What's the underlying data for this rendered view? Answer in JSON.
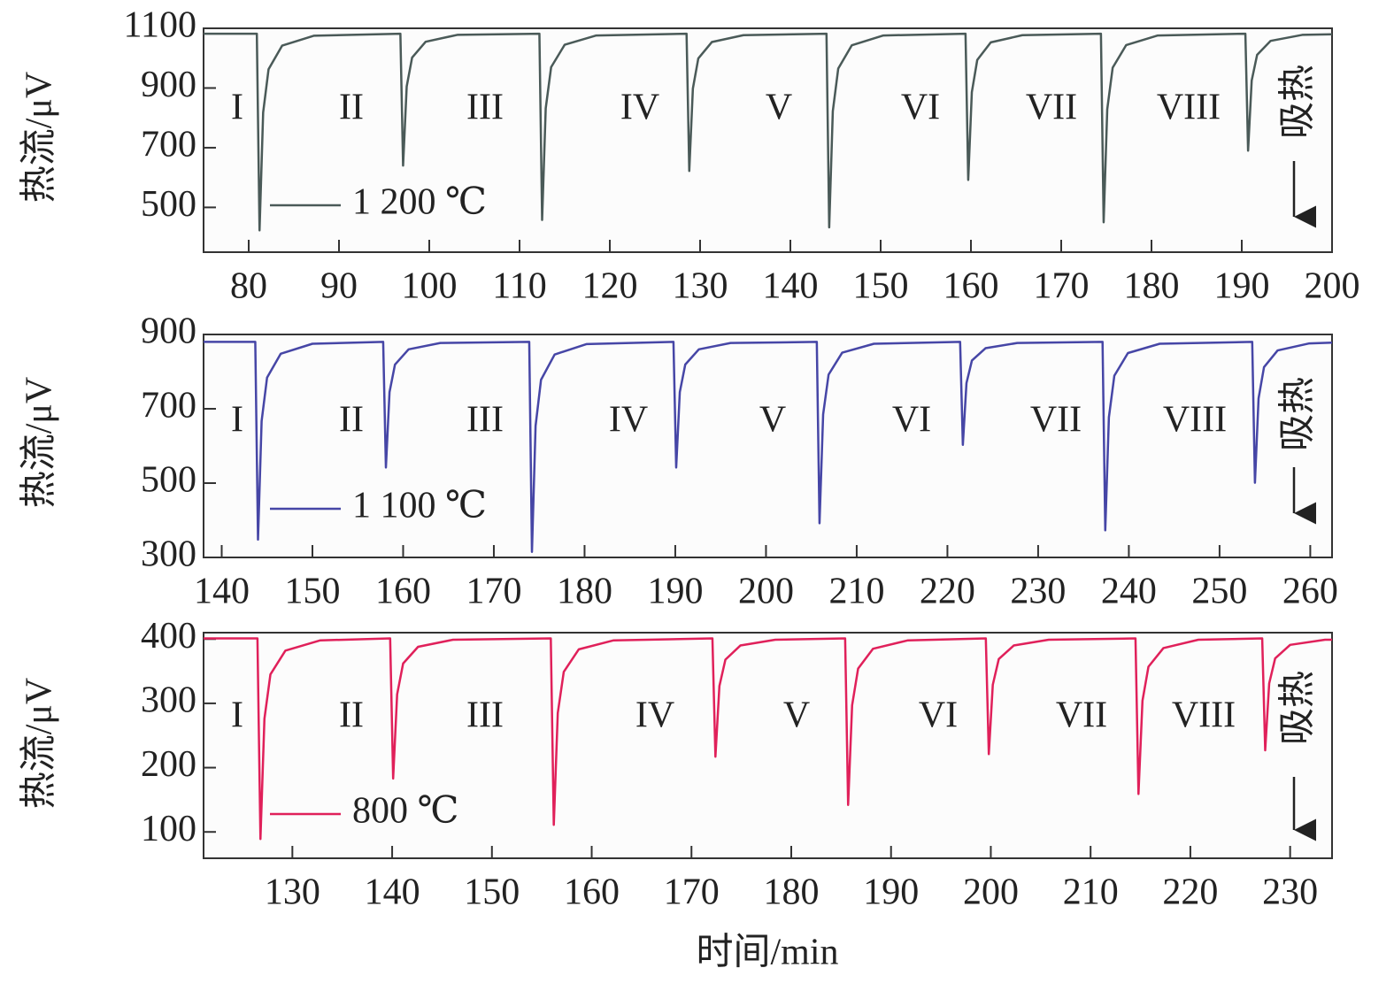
{
  "chart_data": [
    {
      "type": "line",
      "ylabel": "热流/μV",
      "xlim": [
        75,
        200
      ],
      "ylim": [
        350,
        1100
      ],
      "xticks": [
        80,
        90,
        100,
        110,
        120,
        130,
        140,
        150,
        160,
        170,
        180,
        190,
        200
      ],
      "yticks": [
        500,
        700,
        900,
        1100
      ],
      "annotations": [
        "I",
        "II",
        "III",
        "IV",
        "V",
        "VI",
        "VII",
        "VIII"
      ],
      "note": "吸热",
      "label_color": "#4f7a72",
      "x": [
        75,
        80.9,
        81.2,
        81.6,
        82.2,
        83.7,
        87.2,
        96.8,
        97.1,
        97.5,
        98.1,
        99.6,
        103.1,
        112.2,
        112.5,
        112.9,
        113.5,
        115,
        118.5,
        128.5,
        128.8,
        129.2,
        129.8,
        131.3,
        134.8,
        144,
        144.3,
        144.7,
        145.3,
        146.8,
        150.3,
        159.4,
        159.7,
        160.1,
        160.7,
        162.2,
        165.7,
        174.4,
        174.7,
        175.1,
        175.7,
        177.2,
        180.7,
        190.4,
        190.7,
        191.1,
        191.7,
        193.2,
        196.7,
        200
      ],
      "series": [
        {
          "name": "1 200 ℃",
          "color": "#4a5a58",
          "values": [
            1082,
            1082,
            423,
            818,
            963,
            1042,
            1075,
            1082,
            640,
            905,
            1002,
            1055,
            1078,
            1082,
            458,
            832,
            970,
            1045,
            1076,
            1082,
            622,
            898,
            999,
            1054,
            1077,
            1082,
            433,
            822,
            965,
            1043,
            1076,
            1082,
            592,
            886,
            994,
            1053,
            1077,
            1082,
            450,
            829,
            968,
            1044,
            1076,
            1082,
            690,
            925,
            1011,
            1058,
            1078,
            1080
          ]
        }
      ]
    },
    {
      "type": "line",
      "ylabel": "热流/μV",
      "xlim": [
        138,
        262.4
      ],
      "ylim": [
        300,
        900
      ],
      "xticks": [
        140,
        150,
        160,
        170,
        180,
        190,
        200,
        210,
        220,
        230,
        240,
        250,
        260
      ],
      "yticks": [
        300,
        500,
        700,
        900
      ],
      "annotations": [
        "I",
        "II",
        "III",
        "IV",
        "V",
        "VI",
        "VII",
        "VIII"
      ],
      "note": "吸热",
      "label_color": "#4444aa",
      "x": [
        138,
        143.7,
        144,
        144.4,
        145,
        146.5,
        150,
        157.8,
        158.1,
        158.5,
        159.1,
        160.6,
        164.1,
        173.9,
        174.2,
        174.6,
        175.2,
        176.7,
        180.2,
        189.8,
        190.1,
        190.5,
        191.1,
        192.6,
        196.1,
        205.6,
        205.9,
        206.3,
        206.9,
        208.4,
        211.9,
        221.4,
        221.7,
        222.1,
        222.7,
        224.2,
        227.7,
        237.1,
        237.4,
        237.8,
        238.4,
        239.9,
        243.4,
        253.6,
        253.9,
        254.3,
        254.9,
        256.4,
        259.9,
        262.4
      ],
      "series": [
        {
          "name": "1 100 ℃",
          "color": "#4646a6",
          "values": [
            880,
            880,
            348,
            667,
            784,
            848,
            875,
            880,
            542,
            745,
            819,
            860,
            877,
            880,
            315,
            654,
            778,
            846,
            874,
            880,
            542,
            745,
            819,
            860,
            877,
            880,
            392,
            685,
            792,
            851,
            875,
            880,
            603,
            769,
            830,
            863,
            877,
            880,
            373,
            677,
            789,
            850,
            875,
            880,
            501,
            728,
            812,
            857,
            876,
            878
          ]
        }
      ]
    },
    {
      "type": "line",
      "ylabel": "热流/μV",
      "xlabel": "时间/min",
      "xlim": [
        121.1,
        234.2
      ],
      "ylim": [
        59,
        410
      ],
      "xticks": [
        130,
        140,
        150,
        160,
        170,
        180,
        190,
        200,
        210,
        220,
        230
      ],
      "yticks": [
        100,
        200,
        300,
        400
      ],
      "annotations": [
        "I",
        "II",
        "III",
        "IV",
        "V",
        "VI",
        "VII",
        "VIII"
      ],
      "note": "吸热",
      "label_color": "#d8264a",
      "x": [
        121.1,
        126.5,
        126.8,
        127.2,
        127.8,
        129.3,
        132.8,
        139.8,
        140.1,
        140.5,
        141.1,
        142.6,
        146.1,
        155.9,
        156.2,
        156.6,
        157.2,
        158.7,
        162.2,
        172.1,
        172.4,
        172.8,
        173.4,
        174.9,
        178.4,
        185.4,
        185.7,
        186.1,
        186.7,
        188.2,
        191.7,
        199.5,
        199.8,
        200.2,
        200.8,
        202.3,
        205.8,
        214.5,
        214.8,
        215.2,
        215.8,
        217.3,
        220.8,
        227.2,
        227.5,
        227.9,
        228.5,
        230,
        233.5,
        234.2
      ],
      "series": [
        {
          "name": "800 ℃",
          "color": "#e0205a",
          "values": [
            401,
            401,
            89,
            276,
            345,
            382,
            398,
            401,
            183,
            314,
            362,
            388,
            399,
            401,
            111,
            285,
            349,
            384,
            398,
            401,
            217,
            327,
            368,
            390,
            399,
            401,
            142,
            297,
            354,
            385,
            398,
            401,
            221,
            329,
            369,
            390,
            399,
            401,
            159,
            304,
            357,
            386,
            399,
            401,
            227,
            331,
            370,
            391,
            399,
            399
          ]
        }
      ]
    }
  ]
}
